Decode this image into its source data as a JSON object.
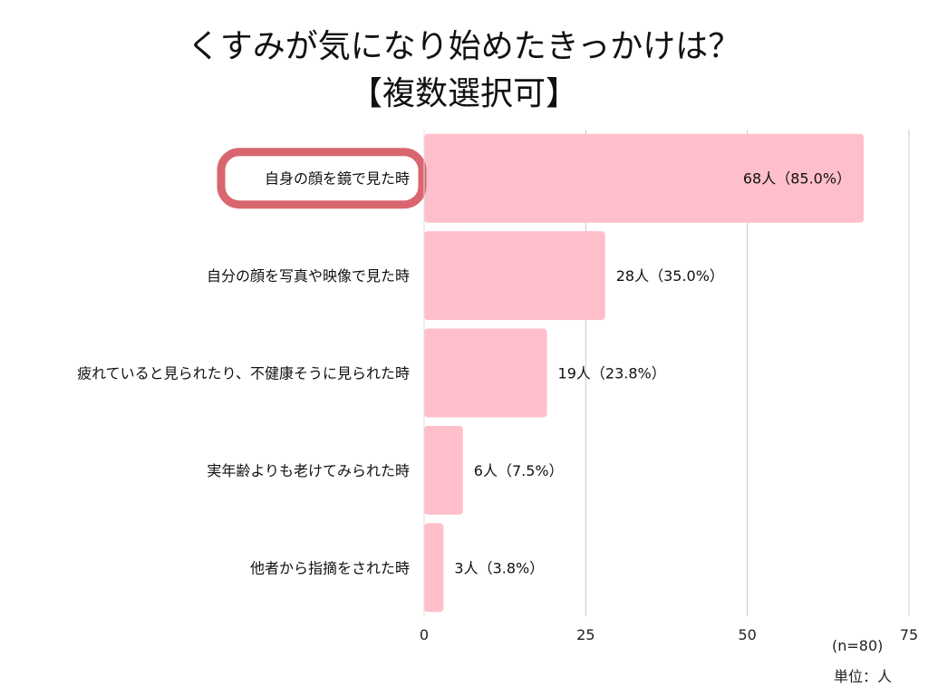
{
  "title_line1": "くすみが気になり始めたきっかけは？",
  "title_line2": "【複数選択可】",
  "sample_note": "(n=80)",
  "unit_note": "単位：人",
  "colors": {
    "bar": "#ffbfca",
    "highlight_border": "#d9666f",
    "grid": "#cccccc"
  },
  "chart_data": {
    "type": "bar",
    "orientation": "horizontal",
    "categories": [
      "自身の顔を鏡で見た時",
      "自分の顔を写真や映像で見た時",
      "疲れていると見られたり、不健康そうに見られた時",
      "実年齢よりも老けてみられた時",
      "他者から指摘をされた時"
    ],
    "values": [
      68,
      28,
      19,
      6,
      3
    ],
    "data_labels": [
      "68人（85.0%）",
      "28人（35.0%）",
      "19人（23.8%）",
      "6人（7.5%）",
      "3人（3.8%）"
    ],
    "xlim": [
      0,
      75
    ],
    "xticks": [
      0,
      25,
      50,
      75
    ],
    "grid": true,
    "highlight_index": 0
  }
}
